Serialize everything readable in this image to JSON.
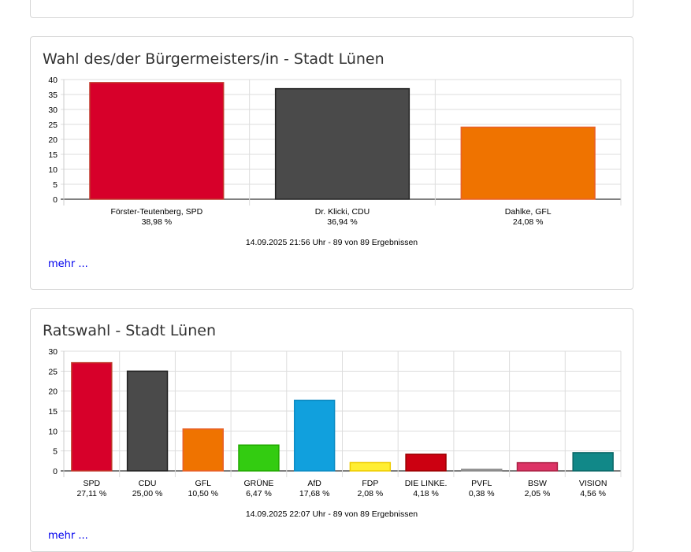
{
  "chart_data": [
    {
      "type": "bar",
      "title": "Wahl des/der Bürgermeisters/in - Stadt Lünen",
      "categories": [
        "Förster-Teutenberg, SPD",
        "Dr. Klicki, CDU",
        "Dahlke, GFL"
      ],
      "percent_labels": [
        "38,98 %",
        "36,94 %",
        "24,08 %"
      ],
      "values": [
        38.98,
        36.94,
        24.08
      ],
      "colors": [
        "#d7002a",
        "#4a4a4a",
        "#ef7300"
      ],
      "border_colors": [
        "#c0392b",
        "#222222",
        "#e8602a"
      ],
      "ylim": [
        0,
        40
      ],
      "yticks": [
        0,
        5,
        10,
        15,
        20,
        25,
        30,
        35,
        40
      ],
      "grid": true,
      "footer": "14.09.2025 21:56 Uhr - 89 von 89 Ergebnissen"
    },
    {
      "type": "bar",
      "title": "Ratswahl - Stadt Lünen",
      "categories": [
        "SPD",
        "CDU",
        "GFL",
        "GRÜNE",
        "AfD",
        "FDP",
        "DIE LINKE.",
        "PVFL",
        "BSW",
        "VISION"
      ],
      "percent_labels": [
        "27,11 %",
        "25,00 %",
        "10,50 %",
        "6,47 %",
        "17,68 %",
        "2,08 %",
        "4,18 %",
        "0,38 %",
        "2,05 %",
        "4,56 %"
      ],
      "values": [
        27.11,
        25.0,
        10.5,
        6.47,
        17.68,
        2.08,
        4.18,
        0.38,
        2.05,
        4.56
      ],
      "colors": [
        "#d7002a",
        "#4a4a4a",
        "#ef7300",
        "#33cc11",
        "#11a0dd",
        "#ffee33",
        "#cc0011",
        "#999999",
        "#dd3366",
        "#118888"
      ],
      "border_colors": [
        "#c0392b",
        "#222222",
        "#e8602a",
        "#22aa00",
        "#0e8cc4",
        "#eecc00",
        "#990000",
        "#888888",
        "#aa2244",
        "#0a6666"
      ],
      "ylim": [
        0,
        30
      ],
      "yticks": [
        0,
        5,
        10,
        15,
        20,
        25,
        30
      ],
      "grid": true,
      "footer": "14.09.2025 22:07 Uhr - 89 von 89 Ergebnissen"
    }
  ],
  "links": {
    "more": "mehr ..."
  }
}
